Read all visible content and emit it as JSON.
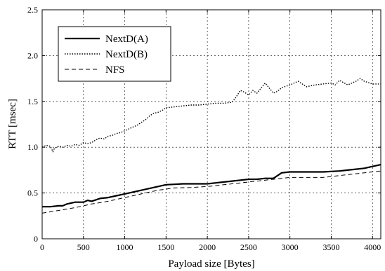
{
  "chart_data": {
    "type": "line",
    "xlabel": "Payload size [Bytes]",
    "ylabel": "RTT [msec]",
    "xlim": [
      0,
      4100
    ],
    "ylim": [
      0,
      2.5
    ],
    "xticks": [
      0,
      500,
      1000,
      1500,
      2000,
      2500,
      3000,
      3500,
      4000
    ],
    "yticks": [
      0,
      0.5,
      1.0,
      1.5,
      2.0,
      2.5
    ],
    "xtick_labels": [
      "0",
      "500",
      "1000",
      "1500",
      "2000",
      "2500",
      "3000",
      "3500",
      "4000"
    ],
    "ytick_labels": [
      "0",
      "0.5",
      "1.0",
      "1.5",
      "2.0",
      "2.5"
    ],
    "grid": "dashed",
    "legend_position": "top-left",
    "series": [
      {
        "name": "NextD(A)",
        "style": "solid",
        "x": [
          0,
          100,
          200,
          250,
          300,
          400,
          500,
          550,
          600,
          700,
          800,
          900,
          1000,
          1100,
          1200,
          1300,
          1400,
          1500,
          1600,
          1700,
          1800,
          1900,
          2000,
          2100,
          2200,
          2300,
          2400,
          2500,
          2600,
          2700,
          2800,
          2900,
          3000,
          3200,
          3400,
          3600,
          3700,
          3800,
          3900,
          4000,
          4100
        ],
        "y": [
          0.35,
          0.35,
          0.36,
          0.36,
          0.38,
          0.4,
          0.4,
          0.42,
          0.41,
          0.44,
          0.45,
          0.47,
          0.49,
          0.51,
          0.53,
          0.55,
          0.57,
          0.59,
          0.595,
          0.6,
          0.6,
          0.6,
          0.6,
          0.61,
          0.62,
          0.63,
          0.64,
          0.65,
          0.65,
          0.66,
          0.66,
          0.72,
          0.73,
          0.73,
          0.73,
          0.74,
          0.75,
          0.76,
          0.77,
          0.79,
          0.81
        ]
      },
      {
        "name": "NextD(B)",
        "style": "dotted",
        "x": [
          0,
          50,
          100,
          130,
          150,
          200,
          250,
          300,
          350,
          400,
          450,
          500,
          550,
          600,
          650,
          700,
          750,
          800,
          850,
          900,
          950,
          1000,
          1050,
          1100,
          1150,
          1200,
          1250,
          1300,
          1350,
          1400,
          1450,
          1500,
          1600,
          1700,
          1800,
          1900,
          2000,
          2100,
          2200,
          2300,
          2350,
          2400,
          2450,
          2500,
          2550,
          2600,
          2700,
          2800,
          2850,
          2900,
          3000,
          3100,
          3200,
          3300,
          3400,
          3500,
          3550,
          3600,
          3700,
          3800,
          3850,
          3900,
          4000,
          4100
        ],
        "y": [
          1.0,
          1.02,
          1.01,
          0.95,
          0.99,
          1.01,
          1.0,
          1.02,
          1.01,
          1.03,
          1.02,
          1.05,
          1.04,
          1.05,
          1.08,
          1.1,
          1.09,
          1.12,
          1.13,
          1.15,
          1.16,
          1.18,
          1.2,
          1.22,
          1.24,
          1.27,
          1.3,
          1.34,
          1.37,
          1.38,
          1.4,
          1.43,
          1.44,
          1.45,
          1.46,
          1.46,
          1.47,
          1.48,
          1.48,
          1.49,
          1.55,
          1.62,
          1.6,
          1.57,
          1.62,
          1.59,
          1.7,
          1.59,
          1.61,
          1.65,
          1.68,
          1.72,
          1.66,
          1.68,
          1.69,
          1.7,
          1.68,
          1.73,
          1.68,
          1.72,
          1.75,
          1.72,
          1.69,
          1.69
        ]
      },
      {
        "name": "NFS",
        "style": "dashed",
        "x": [
          0,
          200,
          400,
          600,
          800,
          1000,
          1200,
          1400,
          1600,
          1800,
          2000,
          2200,
          2400,
          2600,
          2800,
          3000,
          3200,
          3400,
          3600,
          3800,
          4000,
          4100
        ],
        "y": [
          0.28,
          0.31,
          0.34,
          0.38,
          0.41,
          0.45,
          0.49,
          0.53,
          0.555,
          0.56,
          0.57,
          0.59,
          0.61,
          0.63,
          0.65,
          0.67,
          0.67,
          0.67,
          0.69,
          0.71,
          0.73,
          0.74
        ]
      }
    ]
  }
}
